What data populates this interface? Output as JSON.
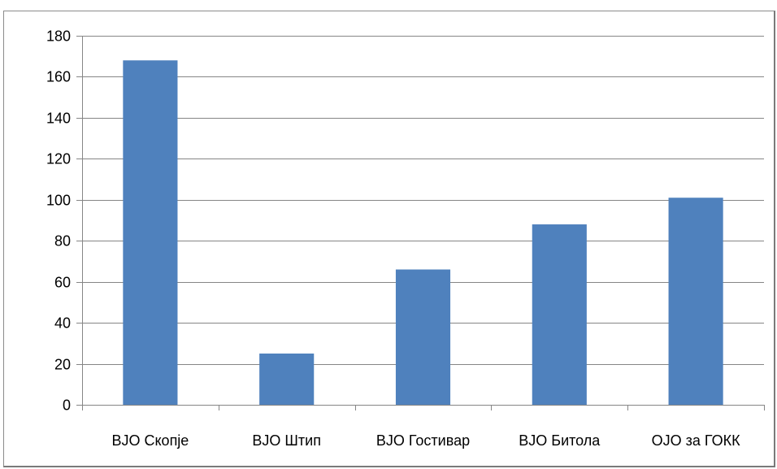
{
  "chart_data": {
    "type": "bar",
    "categories": [
      "ВЈО Скопје",
      "ВЈО Штип",
      "ВЈО Гостивар",
      "ВЈО Битола",
      "ОЈО за ГОКК"
    ],
    "values": [
      168,
      25,
      66,
      88,
      101
    ],
    "ylim": [
      0,
      180
    ],
    "yticks": [
      0,
      20,
      40,
      60,
      80,
      100,
      120,
      140,
      160,
      180
    ],
    "grid": true,
    "legend": "none",
    "bar_color": "#4f81bd",
    "grid_color": "#868686"
  }
}
